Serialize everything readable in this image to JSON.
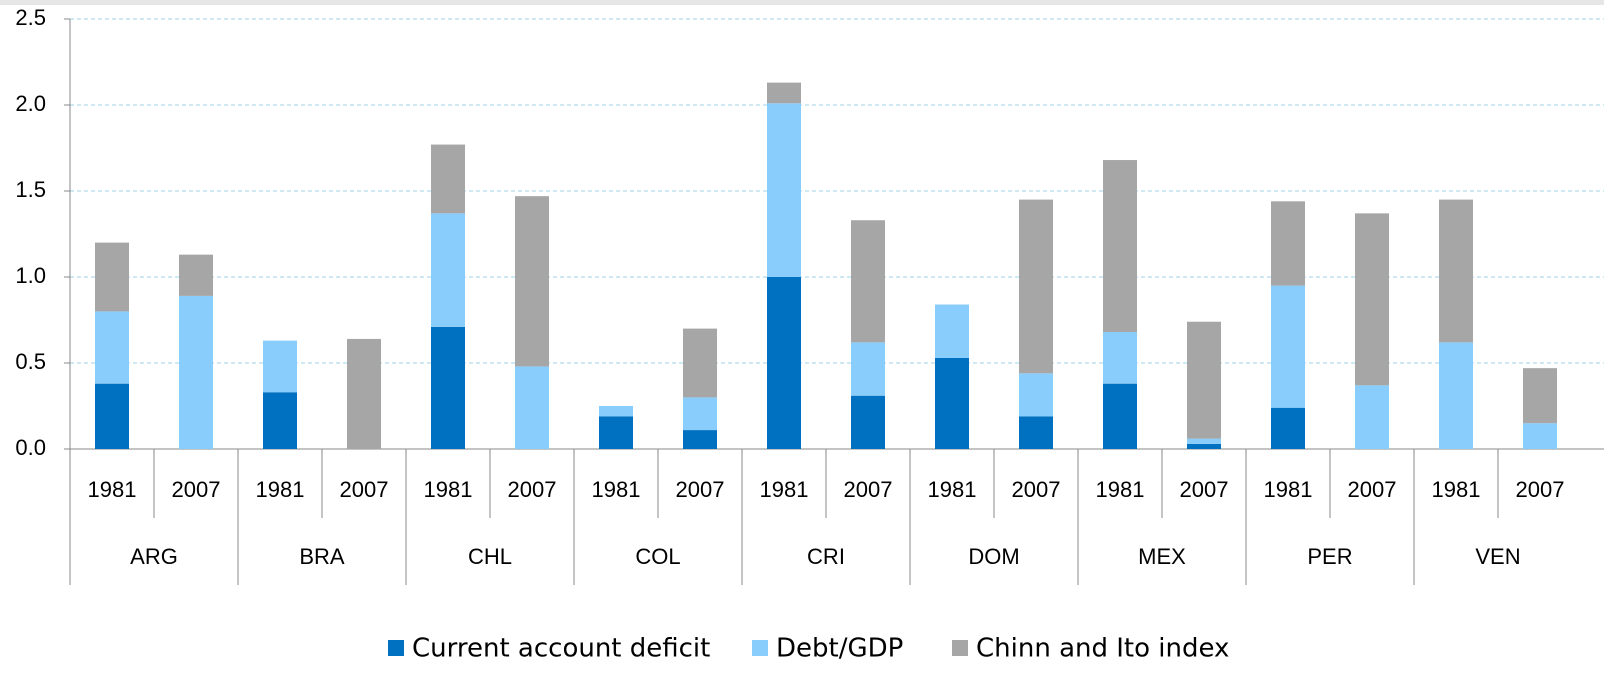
{
  "chart_data": {
    "type": "stacked_bar",
    "categories": [
      "1981",
      "2007",
      "1981",
      "2007",
      "1981",
      "2007",
      "1981",
      "2007",
      "1981",
      "2007",
      "1981",
      "2007",
      "1981",
      "2007",
      "1981",
      "2007",
      "1981",
      "2007"
    ],
    "groups": [
      "ARG",
      "BRA",
      "CHL",
      "COL",
      "CRI",
      "DOM",
      "MEX",
      "PER",
      "VEN"
    ],
    "series": [
      {
        "name": "Current account deficit",
        "color": "#0070c0",
        "values": [
          0.38,
          0,
          0.33,
          0,
          0.71,
          0,
          0.19,
          0.11,
          1.0,
          0.31,
          0.53,
          0.19,
          0.38,
          0.03,
          0.24,
          0,
          0,
          0
        ]
      },
      {
        "name": "Debt/GDP",
        "color": "#89cdfc",
        "values": [
          0.42,
          0.89,
          0.3,
          0,
          0.66,
          0.48,
          0.06,
          0.19,
          1.01,
          0.31,
          0.31,
          0.25,
          0.3,
          0.03,
          0.71,
          0.37,
          0.62,
          0.15
        ]
      },
      {
        "name": "Chinn and Ito index",
        "color": "#a6a6a6",
        "values": [
          0.4,
          0.24,
          0,
          0.64,
          0.4,
          0.99,
          0,
          0.4,
          0.12,
          0.71,
          0,
          1.01,
          1.0,
          0.68,
          0.49,
          1.0,
          0.83,
          0.32
        ]
      }
    ],
    "ylim": [
      0,
      2.5
    ],
    "yticks": [
      {
        "value": 0,
        "label": "0.0"
      },
      0.5,
      {
        "value": 1,
        "label": "1.0"
      },
      1.5,
      {
        "value": 2,
        "label": "2.0"
      },
      2.5
    ],
    "grid": true,
    "legend": "bottom"
  }
}
